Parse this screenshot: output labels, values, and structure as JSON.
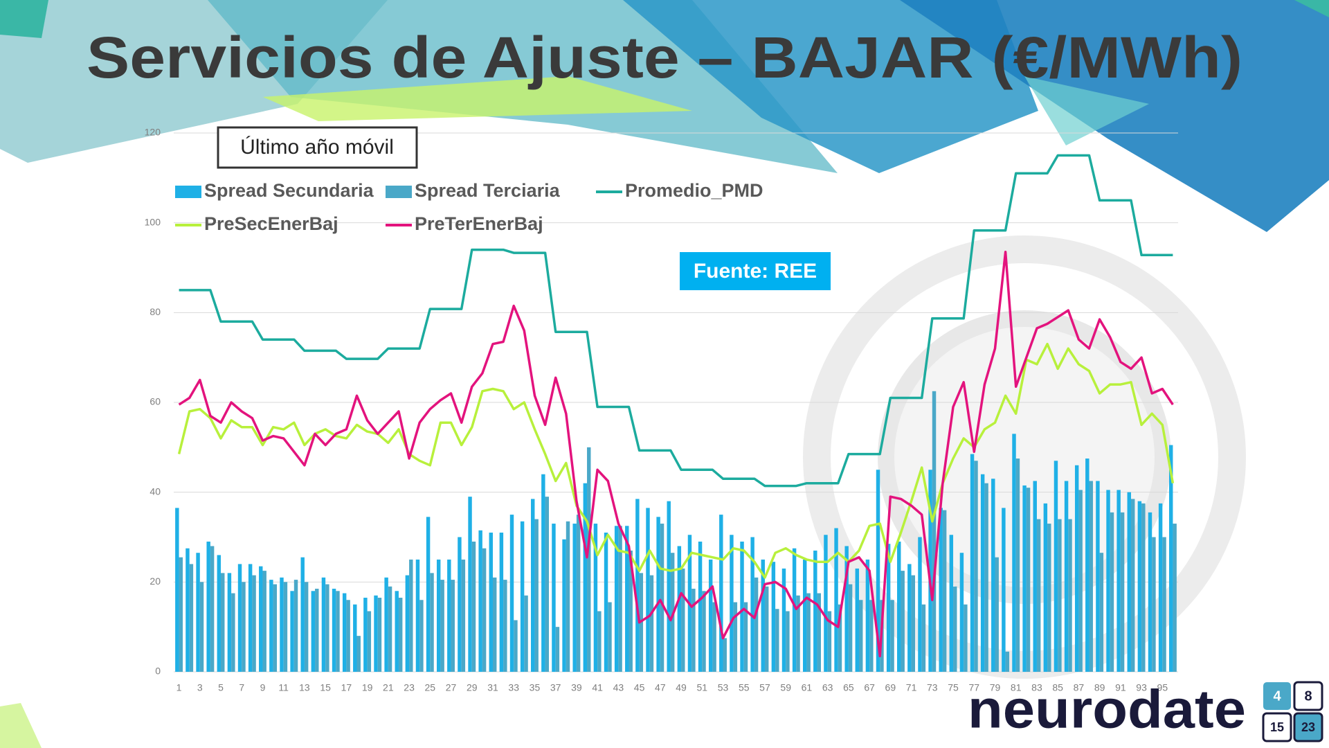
{
  "chart_data": {
    "type": "combo",
    "title": "Servicios de Ajuste – BAJAR (€/MWh)",
    "subtitle": "Último año móvil",
    "annotation": "Fuente: REE",
    "logo": "neurodate",
    "logo_badge": [
      "4",
      "8",
      "15",
      "23"
    ],
    "categories": [
      "1",
      null,
      "3",
      null,
      "5",
      null,
      "7",
      null,
      "9",
      null,
      "11",
      null,
      "13",
      null,
      "15",
      null,
      "17",
      null,
      "19",
      null,
      "21",
      null,
      "23",
      null,
      "25",
      null,
      "27",
      null,
      "29",
      null,
      "31",
      null,
      "33",
      null,
      "35",
      null,
      "37",
      null,
      "39",
      null,
      "41",
      null,
      "43",
      null,
      "45",
      null,
      "47",
      null,
      "49",
      null,
      "51",
      null,
      "53",
      null,
      "55",
      null,
      "57",
      null,
      "59",
      null,
      "61",
      null,
      "63",
      null,
      "65",
      null,
      "67",
      null,
      "69",
      null,
      "71",
      null,
      "73",
      null,
      "75",
      null,
      "77",
      null,
      "79",
      null,
      "81",
      null,
      "83",
      null,
      "85",
      null,
      "87",
      null,
      "89",
      null,
      "91",
      null,
      "93",
      null,
      "95",
      null
    ],
    "ylim": [
      0,
      120
    ],
    "yticks": [
      0,
      20,
      40,
      60,
      80,
      100,
      120
    ],
    "grid": true,
    "series": [
      {
        "name": "Spread Secundaria",
        "type": "bar",
        "color": "#1fb0e6",
        "values": [
          36.5,
          27.5,
          26.5,
          29,
          26,
          22,
          24,
          24,
          23.5,
          20.5,
          21,
          18,
          25.5,
          18,
          21,
          18.5,
          17.5,
          15,
          16.5,
          17,
          21,
          18,
          21.5,
          25,
          34.5,
          25,
          25,
          30,
          39,
          31.5,
          31,
          31,
          35,
          33.5,
          38.5,
          44,
          33,
          29.5,
          33,
          42,
          33,
          31,
          32.5,
          32.5,
          38.5,
          36.5,
          34.5,
          38,
          28,
          30.5,
          29,
          25,
          35,
          30.5,
          29,
          30,
          25,
          24.5,
          23,
          27.5,
          25,
          27,
          30.5,
          32,
          28,
          23,
          25,
          45,
          28.5,
          29,
          24,
          30,
          45,
          36.5,
          30.5,
          26.5,
          48.5,
          44,
          43,
          36.5,
          53,
          41.5,
          42.5,
          37.5,
          47,
          42.5,
          46,
          47.5,
          42.5,
          40.5,
          40.5,
          40,
          38,
          35.5,
          37.5,
          50.5
        ]
      },
      {
        "name": "Spread Terciaria",
        "type": "bar",
        "color": "#4aa8c8",
        "values": [
          25.5,
          24,
          20,
          28,
          22,
          17.5,
          20,
          21.5,
          22.5,
          19.5,
          20,
          20.5,
          20,
          18.5,
          19.5,
          18,
          16,
          8,
          13.5,
          16.5,
          19,
          16.5,
          25,
          16,
          22,
          20.5,
          20.5,
          25,
          29,
          27.5,
          21,
          20.5,
          11.5,
          17,
          34,
          39,
          10,
          33.5,
          35,
          50,
          13.5,
          15.5,
          32.5,
          27,
          22,
          21.5,
          33,
          26.5,
          23,
          18.5,
          18,
          15.5,
          7.5,
          15.5,
          15.5,
          21,
          19,
          14,
          13.5,
          17,
          17.5,
          17.5,
          13.5,
          15,
          19.5,
          16,
          16,
          16,
          16,
          22.5,
          21.5,
          15,
          62.5,
          36,
          19,
          15,
          47,
          42,
          25.5,
          4.5,
          47.5,
          41,
          34,
          33,
          34,
          34,
          40.5,
          42.5,
          26.5,
          35.5,
          35.5,
          38.5,
          37.5,
          30,
          30,
          33
        ]
      },
      {
        "name": "Promedio_PMD",
        "type": "line",
        "color": "#1cab9e",
        "values": [
          85,
          85,
          85,
          85,
          78,
          78,
          78,
          78,
          74,
          74,
          74,
          74,
          71.5,
          71.5,
          71.5,
          71.5,
          69.7,
          69.7,
          69.7,
          69.7,
          72,
          72,
          72,
          72,
          80.8,
          80.8,
          80.8,
          80.8,
          94,
          94,
          94,
          94,
          93.3,
          93.3,
          93.3,
          93.3,
          75.7,
          75.7,
          75.7,
          75.7,
          59,
          59,
          59,
          59,
          49.3,
          49.3,
          49.3,
          49.3,
          45,
          45,
          45,
          45,
          43,
          43,
          43,
          43,
          41.4,
          41.4,
          41.4,
          41.4,
          42,
          42,
          42,
          42,
          48.5,
          48.5,
          48.5,
          48.5,
          61,
          61,
          61,
          61,
          78.7,
          78.7,
          78.7,
          78.7,
          98.3,
          98.3,
          98.3,
          98.3,
          111,
          111,
          111,
          111,
          115,
          115,
          115,
          115,
          105,
          105,
          105,
          105,
          92.8,
          92.8,
          92.8,
          92.8
        ]
      },
      {
        "name": "PreSecEnerBaj",
        "type": "line",
        "color": "#b8f03c",
        "values": [
          48.5,
          58,
          58.5,
          56.5,
          52,
          56,
          54.5,
          54.5,
          50.5,
          54.5,
          54,
          55.5,
          50.5,
          53,
          54,
          52.5,
          52,
          55,
          53.5,
          53,
          51,
          54,
          48.5,
          47,
          46,
          55.5,
          55.5,
          50.5,
          54.5,
          62.5,
          63,
          62.5,
          58.5,
          60,
          54,
          48.5,
          42.5,
          46.5,
          37,
          33.5,
          26,
          30.5,
          27,
          26.5,
          22.5,
          27,
          23,
          22.5,
          23,
          26.5,
          26,
          25.5,
          25,
          27.5,
          27,
          24.5,
          21,
          26.5,
          27.5,
          26,
          25,
          24.5,
          24.5,
          26.5,
          24.5,
          27,
          32.5,
          33,
          24.5,
          31,
          38,
          45.5,
          33.5,
          42,
          47.5,
          52,
          50,
          54,
          55.5,
          61.5,
          57.5,
          69.5,
          68.5,
          73,
          67.5,
          72,
          68.5,
          67,
          62,
          64,
          64,
          64.5,
          55,
          57.5,
          55,
          42
        ]
      },
      {
        "name": "PreTerEnerBaj",
        "type": "line",
        "color": "#e3137d",
        "values": [
          59.5,
          61,
          65,
          57,
          55.5,
          60,
          58,
          56.5,
          51.5,
          52.5,
          52,
          49,
          46,
          53,
          50.5,
          53,
          54,
          61.5,
          56,
          53,
          55.5,
          58,
          47.5,
          55.5,
          58.5,
          60.5,
          62,
          55.5,
          63.5,
          66.5,
          73,
          73.5,
          81.5,
          76,
          61.5,
          55,
          65.5,
          57.5,
          38,
          25.5,
          45,
          42.5,
          33,
          28,
          11,
          12.5,
          16,
          11.5,
          17.5,
          14.5,
          16.5,
          19,
          7.5,
          12,
          14,
          12,
          19.5,
          20,
          18.5,
          14,
          16.5,
          15,
          11.5,
          10,
          24.5,
          25.5,
          22.5,
          3.5,
          39,
          38.5,
          37,
          35,
          16,
          42,
          59,
          64.5,
          49,
          64,
          72,
          93.5,
          63.5,
          70,
          76.5,
          77.5,
          79,
          80.5,
          74,
          72,
          78.5,
          74.5,
          69,
          67.5,
          70,
          62,
          63,
          59.5
        ]
      }
    ]
  }
}
